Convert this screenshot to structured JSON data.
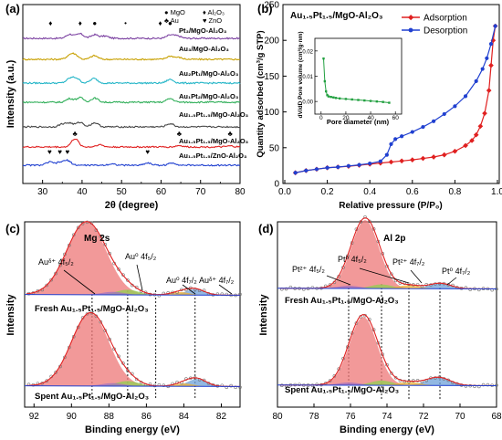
{
  "chart_data": [
    {
      "panel": "(a)",
      "type": "line",
      "xlabel": "2θ (degree)",
      "ylabel": "Intensity (a.u.)",
      "xlim": [
        25,
        80
      ],
      "xticks": [
        30,
        40,
        50,
        60,
        70,
        80
      ],
      "legend": [
        {
          "symbol": "●",
          "label": "MgO"
        },
        {
          "symbol": "♦",
          "label": "Al₂O₃"
        },
        {
          "symbol": "♣",
          "label": "Au"
        },
        {
          "symbol": "♥",
          "label": "ZnO"
        }
      ],
      "series": [
        {
          "name": "Pt₃/MgO-Al₂O₃",
          "color": "#7a3fa0",
          "peaks": [
            36.9,
            39.5,
            43.2,
            45.8,
            62.3,
            64.2
          ],
          "peak_heights": [
            0.9,
            1.0,
            0.8,
            0.5,
            0.7,
            0.5
          ]
        },
        {
          "name": "Au₃/MgO-Al₂O₃",
          "color": "#c8a000",
          "peaks": [
            36.9,
            38.2,
            43.1,
            62.3,
            64.5
          ],
          "peak_heights": [
            0.8,
            0.9,
            0.8,
            0.7,
            0.4
          ]
        },
        {
          "name": "Au₂Pt₁/MgO-Al₂O₃",
          "color": "#22b5c7",
          "peaks": [
            36.9,
            38.5,
            43.0,
            62.3
          ],
          "peak_heights": [
            0.9,
            1.0,
            1.0,
            0.8
          ]
        },
        {
          "name": "Au₁Pt₂/MgO-Al₂O₃",
          "color": "#2fae58",
          "peaks": [
            36.9,
            39.5,
            43.2,
            62.3
          ],
          "peak_heights": [
            0.8,
            1.0,
            0.9,
            0.8
          ]
        },
        {
          "name": "Au₁.₅Pt₁.₅/MgO-Al₂O₃",
          "color": "#444444",
          "peaks": [
            35.0,
            36.9,
            39.5,
            43.2,
            62.3
          ],
          "peak_heights": [
            0.6,
            0.8,
            1.0,
            0.9,
            0.7
          ]
        },
        {
          "name": "Au₁.₅Pt₁.₅/MgO-Al₂O₃",
          "color": "#e02020",
          "peaks": [
            38.2,
            44.4,
            64.6,
            77.5
          ],
          "peak_heights": [
            1.8,
            0.5,
            0.3,
            0.2
          ]
        },
        {
          "name": "Au₁.₅Pt₁.₅/ZnO-Al₂O₃",
          "color": "#2040d0",
          "peaks": [
            31.8,
            34.4,
            36.3,
            47.5,
            56.6,
            62.9
          ],
          "peak_heights": [
            0.7,
            0.6,
            1.0,
            0.3,
            0.5,
            0.5
          ]
        }
      ],
      "markers": [
        {
          "symbol": "♦",
          "x": 32.0,
          "series": 0
        },
        {
          "symbol": "♦",
          "x": 39.5,
          "series": 0
        },
        {
          "symbol": "●",
          "x": 43.2,
          "series": 0
        },
        {
          "symbol": "•",
          "x": 51.0,
          "series": 0
        },
        {
          "symbol": "♦",
          "x": 59.8,
          "series": 0
        },
        {
          "symbol": "●",
          "x": 62.3,
          "series": 0
        },
        {
          "symbol": "♣",
          "x": 38.2,
          "series": 5
        },
        {
          "symbol": "♣",
          "x": 64.6,
          "series": 5
        },
        {
          "symbol": "♣",
          "x": 77.5,
          "series": 5
        },
        {
          "symbol": "♥",
          "x": 31.8,
          "series": 6
        },
        {
          "symbol": "♥",
          "x": 34.4,
          "series": 6
        },
        {
          "symbol": "♥",
          "x": 36.3,
          "series": 6
        },
        {
          "symbol": "♥",
          "x": 56.6,
          "series": 6
        }
      ]
    },
    {
      "panel": "(b)",
      "type": "line",
      "title": "Au₁.₅Pt₁.₅/MgO-Al₂O₃",
      "xlabel": "Relative pressure (P/P₀)",
      "ylabel": "Quantity adsorbed (cm³/g STP)",
      "xlim": [
        0.0,
        1.0
      ],
      "ylim": [
        0,
        250
      ],
      "xticks": [
        0.0,
        0.2,
        0.4,
        0.6,
        0.8,
        1.0
      ],
      "yticks": [
        0,
        50,
        100,
        150,
        200,
        250
      ],
      "legend_position": "top-right",
      "series": [
        {
          "name": "Adsorption",
          "color": "#e02020",
          "x": [
            0.05,
            0.1,
            0.15,
            0.2,
            0.25,
            0.3,
            0.35,
            0.4,
            0.45,
            0.5,
            0.55,
            0.6,
            0.65,
            0.7,
            0.75,
            0.8,
            0.85,
            0.88,
            0.9,
            0.92,
            0.94,
            0.96,
            0.97,
            0.98,
            0.99
          ],
          "y": [
            15,
            18,
            20,
            22,
            23,
            24,
            25.5,
            27,
            28.5,
            30,
            31.5,
            33,
            35,
            37,
            40,
            45,
            53,
            60,
            68,
            80,
            98,
            130,
            165,
            200,
            220
          ]
        },
        {
          "name": "Desorption",
          "color": "#2040d0",
          "x": [
            0.05,
            0.1,
            0.15,
            0.2,
            0.25,
            0.3,
            0.35,
            0.4,
            0.45,
            0.48,
            0.5,
            0.52,
            0.55,
            0.6,
            0.65,
            0.7,
            0.75,
            0.8,
            0.85,
            0.9,
            0.93,
            0.95,
            0.97,
            0.99
          ],
          "y": [
            15,
            18,
            20,
            22,
            23,
            24.5,
            26,
            28,
            31,
            40,
            55,
            62,
            66,
            72,
            79,
            87,
            97,
            108,
            122,
            143,
            160,
            175,
            195,
            220
          ]
        }
      ],
      "inset": {
        "xlabel": "Pore diameter (nm)",
        "ylabel": "dV/dD Pore volume (cm³/g·nm)",
        "xlim": [
          -5,
          65
        ],
        "ylim": [
          -0.005,
          0.025
        ],
        "xticks": [
          0,
          20,
          40,
          60
        ],
        "yticks": [
          0.0,
          0.01,
          0.02
        ],
        "ytick_labels": [
          "0.00",
          "0.01",
          "0.02"
        ],
        "color": "#22a040",
        "x": [
          2,
          3,
          4,
          5,
          6,
          8,
          10,
          12,
          15,
          20,
          25,
          30,
          35,
          40,
          45,
          50,
          55
        ],
        "y": [
          0.017,
          0.008,
          0.004,
          0.0025,
          0.002,
          0.0018,
          0.0016,
          0.0014,
          0.0012,
          0.001,
          0.0008,
          0.0006,
          0.0004,
          0.0002,
          0.0,
          -0.0002,
          -0.0005
        ]
      }
    },
    {
      "panel": "(c)",
      "type": "line",
      "xlabel": "Binding energy (eV)",
      "ylabel": "Intensity",
      "xlim": [
        92.5,
        81
      ],
      "xticks": [
        92,
        90,
        88,
        86,
        84,
        82
      ],
      "annotations": [
        "Mg 2s",
        "Au⁰ 4f₅/₂",
        "Au⁰ 4f₇/₂",
        "Auᵟ⁺ 4f₅/₂",
        "Auᵟ⁺ 4f₇/₂"
      ],
      "dashed_lines": [
        88.9,
        87.0,
        85.5,
        83.4
      ],
      "spectra": [
        {
          "name": "Fresh Au₁.₅Pt₁.₅/MgO-Al₂O₃",
          "components": [
            {
              "label": "Mg 2s",
              "color": "#ee7777",
              "center": 89.2,
              "height": 1.0,
              "width": 1.05
            },
            {
              "label": "Au⁰ 4f₅/₂",
              "color": "#90d050",
              "center": 87.0,
              "height": 0.07,
              "width": 0.6
            },
            {
              "label": "Auᵟ⁺ 4f₅/₂",
              "color": "#a070c0",
              "center": 87.8,
              "height": 0.04,
              "width": 0.6
            },
            {
              "label": "Au⁰ 4f₇/₂",
              "color": "#6da0d8",
              "center": 83.4,
              "height": 0.08,
              "width": 0.5
            },
            {
              "label": "Auᵟ⁺ 4f₇/₂",
              "color": "#f0b030",
              "center": 84.2,
              "height": 0.04,
              "width": 0.5
            }
          ]
        },
        {
          "name": "Spent Au₁.₅Pt₁.₅/MgO-Al₂O₃",
          "components": [
            {
              "label": "Mg 2s",
              "color": "#ee7777",
              "center": 89.0,
              "height": 1.0,
              "width": 1.0
            },
            {
              "label": "Au⁰ 4f₅/₂",
              "color": "#90d050",
              "center": 87.0,
              "height": 0.07,
              "width": 0.6
            },
            {
              "label": "Auᵟ⁺ 4f₅/₂",
              "color": "#a070c0",
              "center": 87.8,
              "height": 0.04,
              "width": 0.6
            },
            {
              "label": "Au⁰ 4f₇/₂",
              "color": "#6da0d8",
              "center": 83.3,
              "height": 0.1,
              "width": 0.5
            },
            {
              "label": "Auᵟ⁺ 4f₇/₂",
              "color": "#f0b030",
              "center": 84.0,
              "height": 0.04,
              "width": 0.5
            }
          ]
        }
      ]
    },
    {
      "panel": "(d)",
      "type": "line",
      "xlabel": "Binding energy (eV)",
      "ylabel": "Intensity",
      "xlim": [
        80,
        68
      ],
      "xticks": [
        80,
        78,
        76,
        74,
        72,
        70,
        68
      ],
      "annotations": [
        "Al 2p",
        "Pt⁰ 4f₅/₂",
        "Pt²⁺ 4f₅/₂",
        "Pt²⁺ 4f₇/₂",
        "Pt⁰ 4f₇/₂"
      ],
      "dashed_lines": [
        76.1,
        74.3,
        72.8,
        71.1
      ],
      "spectra": [
        {
          "name": "Fresh Au₁.₅Pt₁.₅/MgO-Al₂O₃",
          "components": [
            {
              "label": "Al 2p",
              "color": "#ee7777",
              "center": 75.2,
              "height": 1.0,
              "width": 0.75
            },
            {
              "label": "Pt⁰ 4f₅/₂",
              "color": "#90d050",
              "center": 74.3,
              "height": 0.06,
              "width": 0.6
            },
            {
              "label": "Pt²⁺ 4f₅/₂",
              "color": "#a070c0",
              "center": 76.1,
              "height": 0.04,
              "width": 0.6
            },
            {
              "label": "Pt⁰ 4f₇/₂",
              "color": "#6da0d8",
              "center": 71.1,
              "height": 0.08,
              "width": 0.6
            },
            {
              "label": "Pt²⁺ 4f₇/₂",
              "color": "#f0b030",
              "center": 72.8,
              "height": 0.05,
              "width": 0.6
            }
          ]
        },
        {
          "name": "Spent Au₁.₅Pt₁.₅/MgO-Al₂O₃",
          "components": [
            {
              "label": "Al 2p",
              "color": "#ee7777",
              "center": 75.3,
              "height": 1.0,
              "width": 0.75
            },
            {
              "label": "Pt⁰ 4f₅/₂",
              "color": "#90d050",
              "center": 74.3,
              "height": 0.07,
              "width": 0.6
            },
            {
              "label": "Pt²⁺ 4f₅/₂",
              "color": "#a070c0",
              "center": 76.1,
              "height": 0.04,
              "width": 0.6
            },
            {
              "label": "Pt⁰ 4f₇/₂",
              "color": "#6da0d8",
              "center": 71.2,
              "height": 0.12,
              "width": 0.65
            },
            {
              "label": "Pt²⁺ 4f₇/₂",
              "color": "#f0b030",
              "center": 72.8,
              "height": 0.05,
              "width": 0.6
            }
          ]
        }
      ]
    }
  ]
}
